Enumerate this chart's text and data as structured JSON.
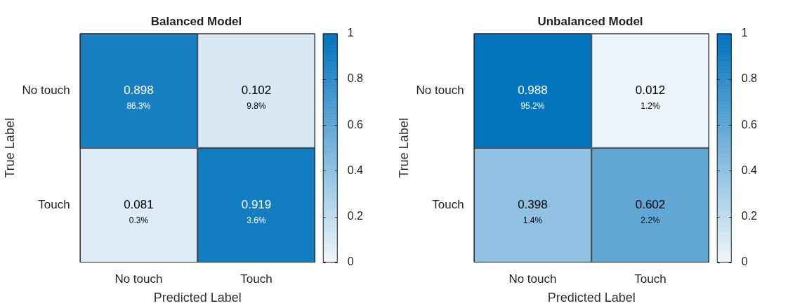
{
  "chart_data": [
    {
      "type": "heatmap",
      "title": "Balanced Model",
      "xlabel": "Predicted Label",
      "ylabel": "True Label",
      "categories": [
        "No touch",
        "Touch"
      ],
      "y_categories": [
        "No touch",
        "Touch"
      ],
      "cells": [
        [
          0.898,
          0.102
        ],
        [
          0.081,
          0.919
        ]
      ],
      "cell_labels": [
        [
          "0.898\n86.3%",
          "0.102\n9.8%"
        ],
        [
          "0.081\n0.3%",
          "0.919\n3.6%"
        ]
      ],
      "clim": [
        0,
        1
      ],
      "cticks": [
        0,
        0.2,
        0.4,
        0.6,
        0.8,
        1
      ]
    },
    {
      "type": "heatmap",
      "title": "Unbalanced Model",
      "xlabel": "Predicted Label",
      "ylabel": "True Label",
      "categories": [
        "No touch",
        "Touch"
      ],
      "y_categories": [
        "No touch",
        "Touch"
      ],
      "cells": [
        [
          0.988,
          0.012
        ],
        [
          0.398,
          0.602
        ]
      ],
      "cell_labels": [
        [
          "0.988\n95.2%",
          "0.012\n1.2%"
        ],
        [
          "0.398\n1.4%",
          "0.602\n2.2%"
        ]
      ],
      "clim": [
        0,
        1
      ],
      "cticks": [
        0,
        0.2,
        0.4,
        0.6,
        0.8,
        1
      ]
    }
  ]
}
